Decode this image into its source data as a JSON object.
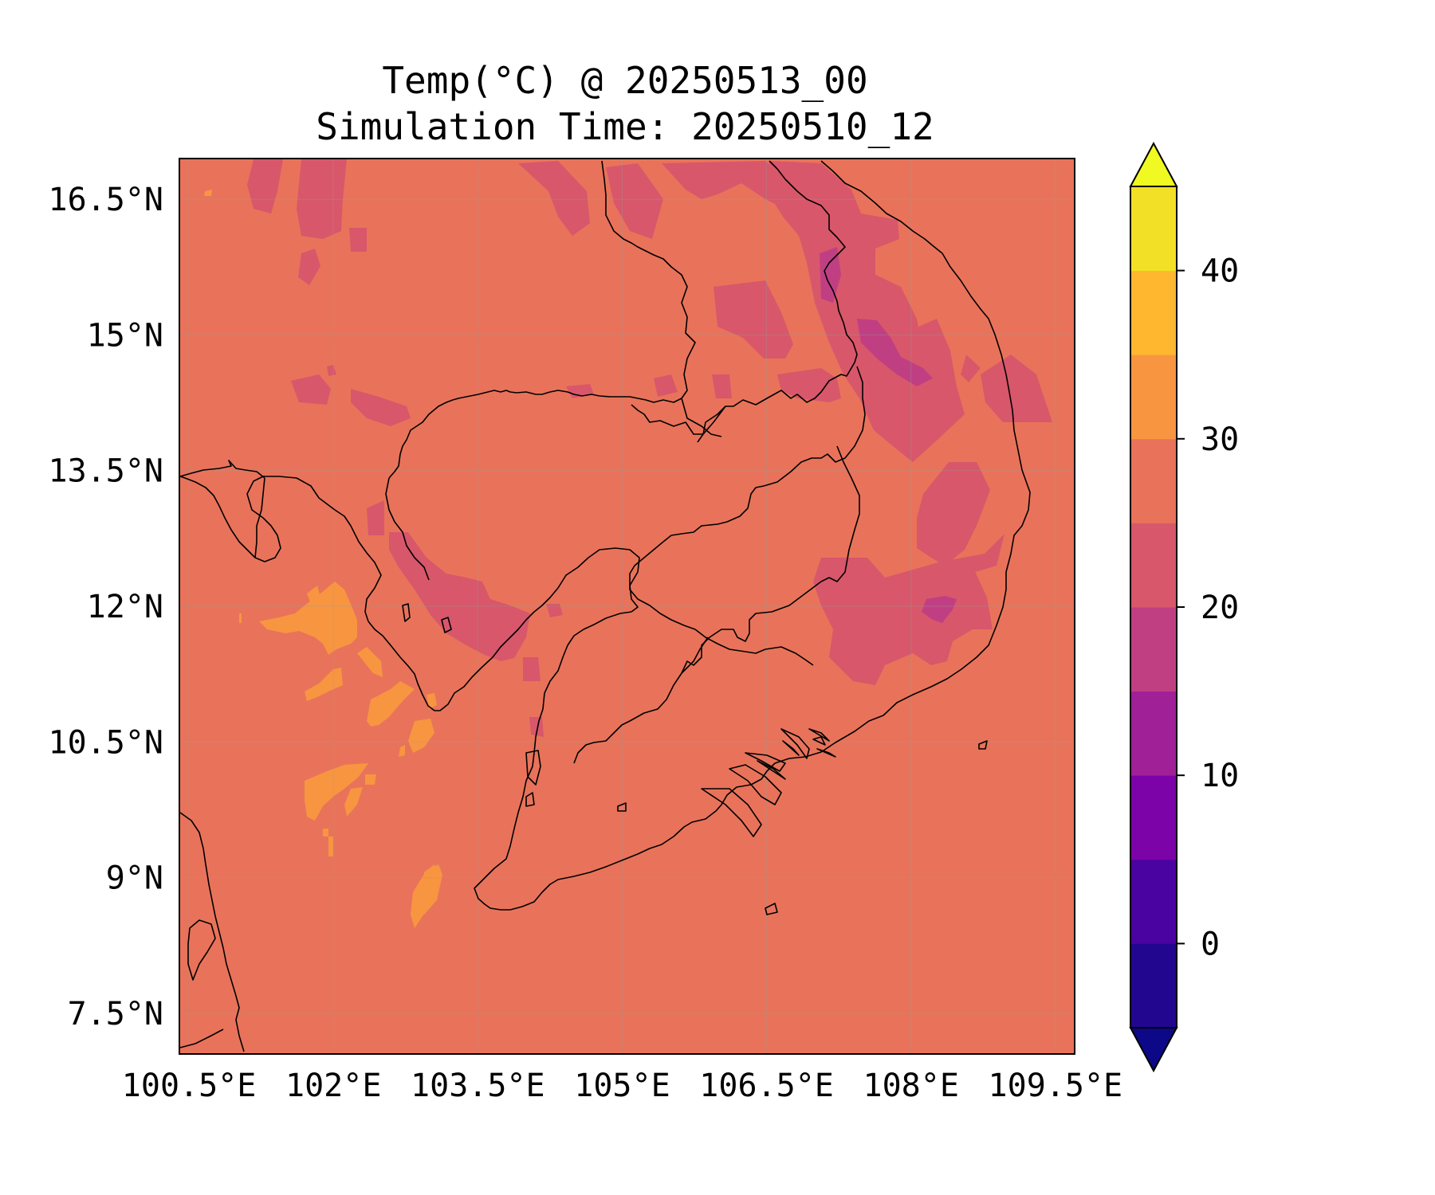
{
  "title": "Temp(°C) @ 20250513_00",
  "subtitle": "Simulation Time: 20250510_12",
  "map": {
    "extent": {
      "lon": [
        100.4,
        109.7
      ],
      "lat": [
        7.05,
        16.95
      ]
    },
    "background_color": "#e8735a",
    "gridlines": true,
    "lon_ticks": [
      {
        "value": 100.5,
        "label": "100.5°E"
      },
      {
        "value": 102.0,
        "label": "102°E"
      },
      {
        "value": 103.5,
        "label": "103.5°E"
      },
      {
        "value": 105.0,
        "label": "105°E"
      },
      {
        "value": 106.5,
        "label": "106.5°E"
      },
      {
        "value": 108.0,
        "label": "108°E"
      },
      {
        "value": 109.5,
        "label": "109.5°E"
      }
    ],
    "lat_ticks": [
      {
        "value": 16.5,
        "label": "16.5°N"
      },
      {
        "value": 15.0,
        "label": "15°N"
      },
      {
        "value": 13.5,
        "label": "13.5°N"
      },
      {
        "value": 12.0,
        "label": "12°N"
      },
      {
        "value": 10.5,
        "label": "10.5°N"
      },
      {
        "value": 9.0,
        "label": "9°N"
      },
      {
        "value": 7.5,
        "label": "7.5°N"
      }
    ]
  },
  "colorbar": {
    "levels": [
      -5,
      0,
      5,
      10,
      15,
      20,
      25,
      30,
      35,
      40,
      45
    ],
    "colors": [
      "#230690",
      "#4a02a0",
      "#7b03a8",
      "#a02097",
      "#c03f83",
      "#d8576b",
      "#e8735a",
      "#f89541",
      "#feb72f",
      "#f2e026"
    ],
    "under_color": "#0d0887",
    "over_color": "#f0f921",
    "extend": "both",
    "tick_values": [
      0,
      10,
      20,
      30,
      40
    ],
    "tick_labels": [
      "0",
      "10",
      "20",
      "30",
      "40"
    ]
  },
  "chart_data": {
    "type": "heatmap",
    "title": "Temp(°C) @ 20250513_00",
    "subtitle": "Simulation Time: 20250510_12",
    "xlabel": "",
    "ylabel": "",
    "xlim": [
      100.4,
      109.7
    ],
    "ylim": [
      7.05,
      16.95
    ],
    "colorbar_range": [
      -5,
      45
    ],
    "dominant_value_range": [
      25,
      30
    ],
    "regions": [
      {
        "band": [
          20,
          25
        ],
        "area": "northern Thailand near 16.6°N, 101.6°E"
      },
      {
        "band": [
          20,
          25
        ],
        "area": "southern Laos / Vietnam Central Highlands 12°N–16.5°N, 106.5°E–108.6°E"
      },
      {
        "band": [
          20,
          25
        ],
        "area": "Cardamom Mountains, western Cambodia near 12°N, 103.5°E"
      },
      {
        "band": [
          20,
          25
        ],
        "area": "Northern Thailand scattered patches 14.3°N–15.5°N, 101.5°E–102.5°E"
      },
      {
        "band": [
          15,
          20
        ],
        "area": "Vietnam highlands near 15°N, 107.7°E"
      },
      {
        "band": [
          15,
          20
        ],
        "area": "southern Vietnam highlands near 12°N, 108.2°E"
      },
      {
        "band": [
          30,
          35
        ],
        "area": "Gulf of Thailand near 11.5°N, 101.5°E"
      },
      {
        "band": [
          30,
          35
        ],
        "area": "Gulf of Thailand near 10.2°N, 101.9°E"
      },
      {
        "band": [
          30,
          35
        ],
        "area": "Gulf of Thailand near 8.8°N, 103.4°E"
      }
    ]
  }
}
